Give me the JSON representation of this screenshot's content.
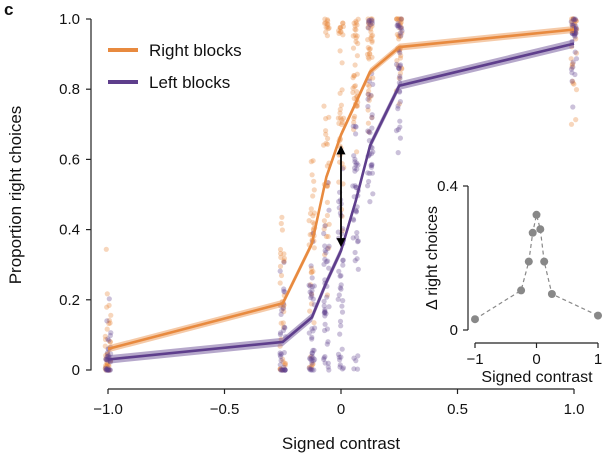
{
  "panel_label": "c",
  "chart_data": [
    {
      "type": "line",
      "xlabel": "Signed contrast",
      "ylabel": "Proportion right choices",
      "xlim": [
        -1.0,
        1.0
      ],
      "ylim": [
        0,
        1.0
      ],
      "x_ticks": [
        -1.0,
        -0.5,
        0,
        0.5,
        1.0
      ],
      "x_tick_labels": [
        "−1.0",
        "−0.5",
        "0",
        "0.5",
        "1.0"
      ],
      "y_ticks": [
        0,
        0.2,
        0.4,
        0.6,
        0.8,
        1.0
      ],
      "y_tick_labels": [
        "0",
        "0.2",
        "0.4",
        "0.6",
        "0.8",
        "1.0"
      ],
      "legend_position": "top-left",
      "grid": false,
      "x": [
        -1.0,
        -0.25,
        -0.125,
        -0.0625,
        0,
        0.0625,
        0.125,
        0.25,
        1.0
      ],
      "series": [
        {
          "name": "Right blocks",
          "color": "#e88a3f",
          "values": [
            0.06,
            0.19,
            0.36,
            0.55,
            0.67,
            0.76,
            0.85,
            0.92,
            0.97
          ],
          "band_halfwidth": 0.01
        },
        {
          "name": "Left blocks",
          "color": "#5e3e8c",
          "values": [
            0.03,
            0.08,
            0.15,
            0.25,
            0.34,
            0.48,
            0.64,
            0.81,
            0.93
          ],
          "band_halfwidth": 0.012
        }
      ],
      "annotation": {
        "type": "double-arrow",
        "x": 0,
        "y_from": 0.35,
        "y_to": 0.64
      }
    },
    {
      "type": "line",
      "xlabel": "Signed contrast",
      "ylabel": "Δ right choices",
      "xlim": [
        -1,
        1
      ],
      "ylim": [
        0,
        0.4
      ],
      "x_ticks": [
        -1,
        0,
        1
      ],
      "x_tick_labels": [
        "−1",
        "0",
        "1"
      ],
      "y_ticks": [
        0,
        0.4
      ],
      "y_tick_labels": [
        "0",
        "0.4"
      ],
      "color": "#888888",
      "x": [
        -1.0,
        -0.25,
        -0.125,
        -0.0625,
        0,
        0.0625,
        0.125,
        0.25,
        1.0
      ],
      "values": [
        0.03,
        0.11,
        0.19,
        0.27,
        0.32,
        0.28,
        0.19,
        0.1,
        0.04
      ]
    }
  ]
}
